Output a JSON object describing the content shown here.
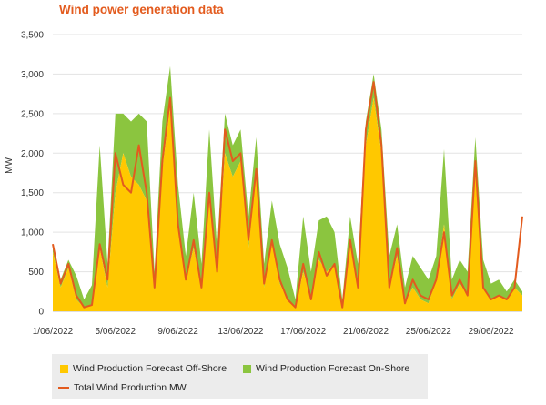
{
  "chart_data": {
    "type": "area",
    "title": "Wind power generation data",
    "xlabel": "",
    "ylabel": "MW",
    "ylim": [
      0,
      3500
    ],
    "yticks": [
      0,
      500,
      1000,
      1500,
      2000,
      2500,
      3000,
      3500
    ],
    "ytick_labels": [
      "0",
      "500",
      "1,000",
      "1,500",
      "2,000",
      "2,500",
      "3,000",
      "3,500"
    ],
    "xlim": [
      1,
      31
    ],
    "xticks": [
      1,
      5,
      9,
      13,
      17,
      21,
      25,
      29
    ],
    "xtick_labels": [
      "1/06/2022",
      "5/06/2022",
      "9/06/2022",
      "13/06/2022",
      "17/06/2022",
      "21/06/2022",
      "25/06/2022",
      "29/06/2022"
    ],
    "grid": "horizontal",
    "legend_position": "bottom",
    "x": [
      1.0,
      1.5,
      2.0,
      2.5,
      3.0,
      3.5,
      4.0,
      4.5,
      5.0,
      5.5,
      6.0,
      6.5,
      7.0,
      7.5,
      8.0,
      8.5,
      9.0,
      9.5,
      10.0,
      10.5,
      11.0,
      11.5,
      12.0,
      12.5,
      13.0,
      13.5,
      14.0,
      14.5,
      15.0,
      15.5,
      16.0,
      16.5,
      17.0,
      17.5,
      18.0,
      18.5,
      19.0,
      19.5,
      20.0,
      20.5,
      21.0,
      21.5,
      22.0,
      22.5,
      23.0,
      23.5,
      24.0,
      24.5,
      25.0,
      25.5,
      26.0,
      26.5,
      27.0,
      27.5,
      28.0,
      28.5,
      29.0,
      29.5,
      30.0,
      30.5,
      31.0
    ],
    "series": [
      {
        "name": "Wind Production Forecast Off-Shore",
        "color": "#ffc800",
        "values": [
          750,
          300,
          550,
          150,
          50,
          80,
          800,
          300,
          1500,
          2000,
          1700,
          1600,
          1400,
          300,
          1800,
          2600,
          1100,
          400,
          800,
          300,
          1400,
          500,
          2000,
          1700,
          1900,
          800,
          1800,
          300,
          900,
          350,
          150,
          50,
          500,
          200,
          650,
          500,
          600,
          100,
          900,
          300,
          2100,
          2700,
          2000,
          300,
          700,
          100,
          300,
          150,
          100,
          400,
          1100,
          150,
          350,
          200,
          1800,
          300,
          150,
          200,
          150,
          300,
          200
        ]
      },
      {
        "name": "Wind Production Forecast On-Shore",
        "color": "#8bc53f",
        "values": [
          100,
          100,
          100,
          300,
          100,
          250,
          1300,
          300,
          1000,
          500,
          700,
          900,
          1000,
          200,
          600,
          500,
          500,
          300,
          700,
          300,
          900,
          300,
          500,
          400,
          400,
          400,
          400,
          300,
          500,
          500,
          400,
          100,
          700,
          300,
          500,
          700,
          400,
          50,
          300,
          300,
          300,
          300,
          300,
          400,
          400,
          200,
          400,
          400,
          300,
          300,
          950,
          250,
          300,
          300,
          400,
          350,
          200,
          200,
          100,
          100,
          50
        ]
      },
      {
        "name": "Total Wind Production MW",
        "color": "#e35b1e",
        "values": [
          850,
          350,
          600,
          200,
          50,
          80,
          850,
          400,
          2000,
          1600,
          1500,
          2100,
          1500,
          300,
          1900,
          2700,
          1100,
          400,
          900,
          300,
          1500,
          500,
          2300,
          1900,
          2000,
          900,
          1800,
          350,
          900,
          400,
          150,
          50,
          600,
          150,
          750,
          450,
          600,
          50,
          900,
          300,
          2300,
          2900,
          2100,
          300,
          800,
          100,
          400,
          200,
          150,
          400,
          1000,
          200,
          400,
          200,
          1900,
          300,
          150,
          200,
          150,
          300,
          1200
        ]
      }
    ]
  }
}
